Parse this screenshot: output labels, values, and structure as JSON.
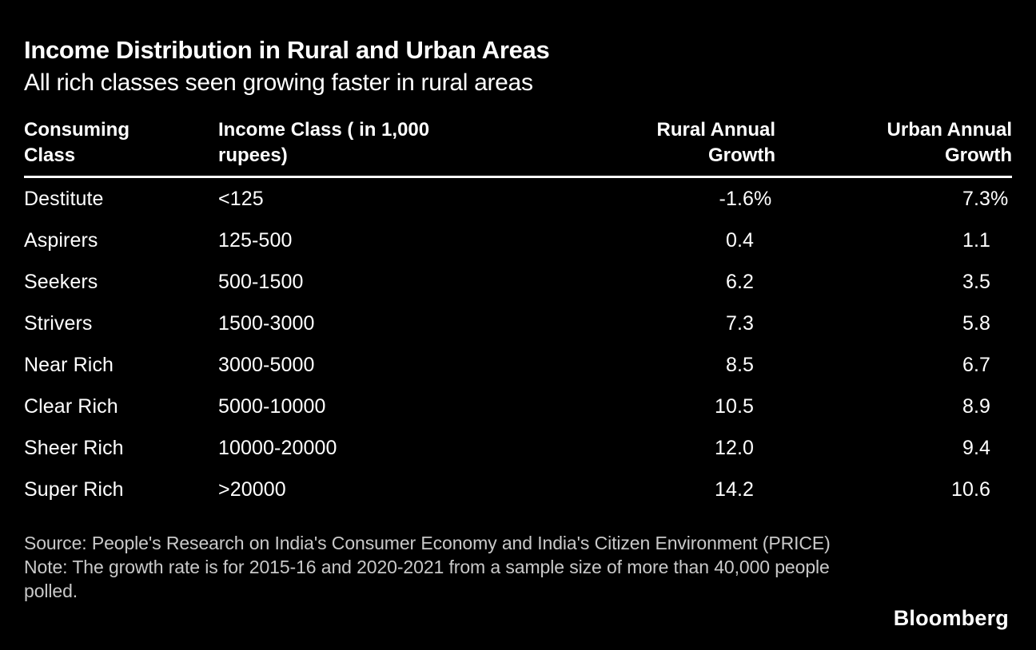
{
  "header": {
    "title": "Income Distribution in Rural and Urban Areas",
    "subtitle": "All rich classes seen growing faster in rural areas"
  },
  "chart_data": {
    "type": "table",
    "title": "Income Distribution in Rural and Urban Areas",
    "subtitle": "All rich classes seen growing faster in rural areas",
    "columns": [
      "Consuming Class",
      "Income Class ( in 1,000 rupees)",
      "Rural Annual Growth",
      "Urban Annual Growth"
    ],
    "categories": [
      "Destitute",
      "Aspirers",
      "Seekers",
      "Strivers",
      "Near Rich",
      "Clear Rich",
      "Sheer Rich",
      "Super Rich"
    ],
    "series": [
      {
        "name": "Rural Annual Growth",
        "unit": "%",
        "values": [
          -1.6,
          0.4,
          6.2,
          7.3,
          8.5,
          10.5,
          12.0,
          14.2
        ]
      },
      {
        "name": "Urban Annual Growth",
        "unit": "%",
        "values": [
          7.3,
          1.1,
          3.5,
          5.8,
          6.7,
          8.9,
          9.4,
          10.6
        ]
      }
    ],
    "rows": [
      {
        "consuming_class": "Destitute",
        "income_class": "<125",
        "rural": "-1.6",
        "rural_suffix": "%",
        "urban": "7.3",
        "urban_suffix": "%"
      },
      {
        "consuming_class": "Aspirers",
        "income_class": "125-500",
        "rural": "0.4",
        "rural_suffix": "",
        "urban": "1.1",
        "urban_suffix": ""
      },
      {
        "consuming_class": "Seekers",
        "income_class": "500-1500",
        "rural": "6.2",
        "rural_suffix": "",
        "urban": "3.5",
        "urban_suffix": ""
      },
      {
        "consuming_class": "Strivers",
        "income_class": "1500-3000",
        "rural": "7.3",
        "rural_suffix": "",
        "urban": "5.8",
        "urban_suffix": ""
      },
      {
        "consuming_class": "Near Rich",
        "income_class": "3000-5000",
        "rural": "8.5",
        "rural_suffix": "",
        "urban": "6.7",
        "urban_suffix": ""
      },
      {
        "consuming_class": "Clear Rich",
        "income_class": "5000-10000",
        "rural": "10.5",
        "rural_suffix": "",
        "urban": "8.9",
        "urban_suffix": ""
      },
      {
        "consuming_class": "Sheer Rich",
        "income_class": "10000-20000",
        "rural": "12.0",
        "rural_suffix": "",
        "urban": "9.4",
        "urban_suffix": ""
      },
      {
        "consuming_class": "Super Rich",
        "income_class": ">20000",
        "rural": "14.2",
        "rural_suffix": "",
        "urban": "10.6",
        "urban_suffix": ""
      }
    ],
    "layout": {
      "background": "#000000",
      "text_color": "#ffffff",
      "footnote_color": "#c9c9c9",
      "header_rule": true,
      "value_alignment": "right"
    }
  },
  "footer": {
    "source": "Source: People's Research on India's Consumer Economy and India's Citizen Environment (PRICE)",
    "note": "Note: The growth rate is for 2015-16 and 2020-2021 from a sample size of more than 40,000 people polled.",
    "brand": "Bloomberg"
  }
}
